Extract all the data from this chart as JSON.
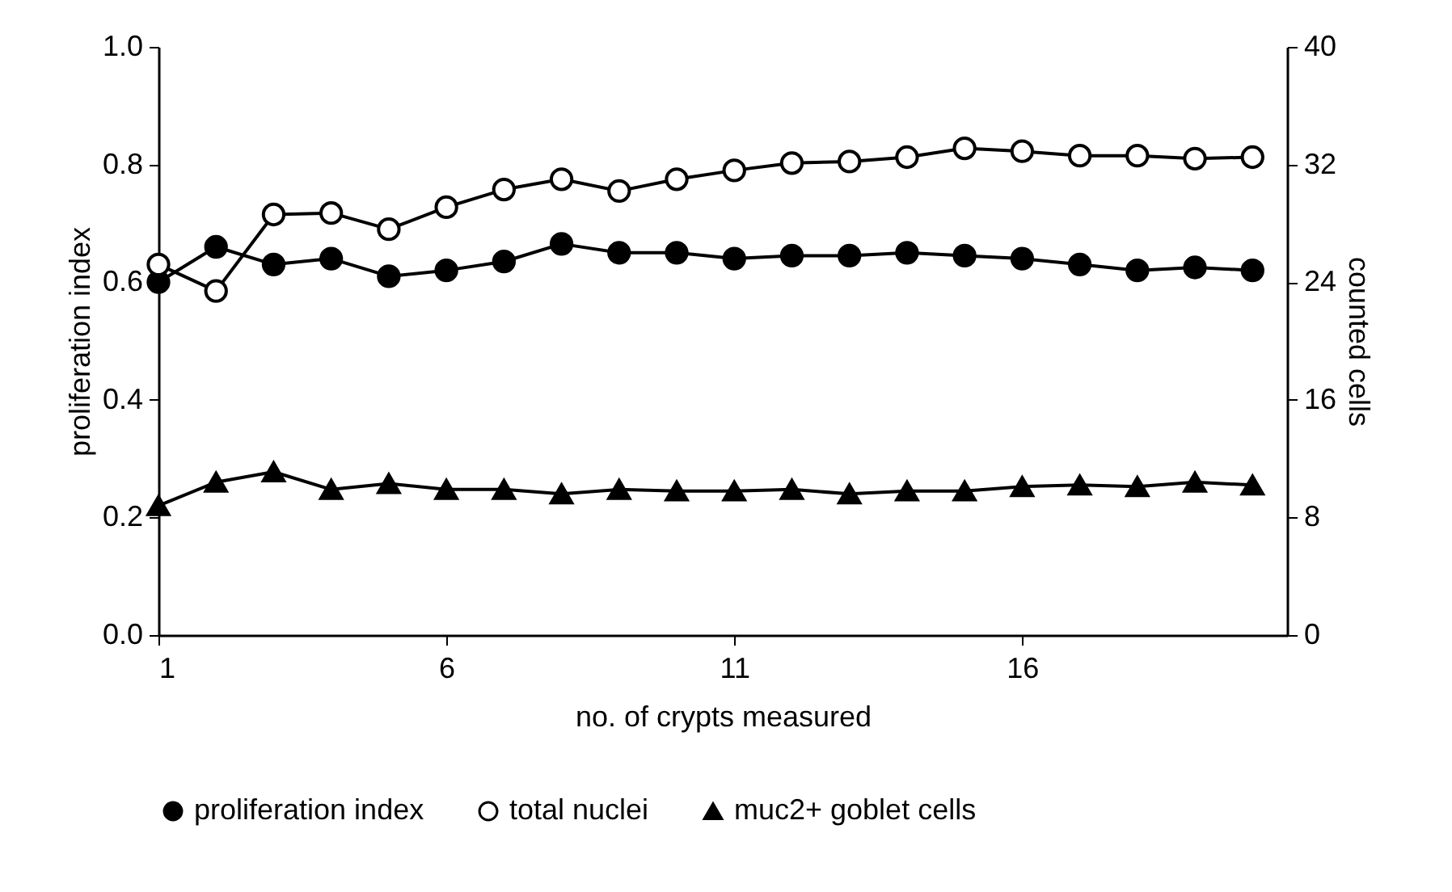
{
  "chart_data": {
    "type": "line",
    "xlabel": "no. of crypts measured",
    "ylabel": "proliferation index",
    "y2label": "counted cells",
    "x": [
      1,
      2,
      3,
      4,
      5,
      6,
      7,
      8,
      9,
      10,
      11,
      12,
      13,
      14,
      15,
      16,
      17,
      18,
      19,
      20
    ],
    "xlim": [
      1,
      20.6
    ],
    "xticks": [
      1,
      6,
      11,
      16
    ],
    "ylim": [
      0,
      1
    ],
    "yticks": [
      {
        "value": 0,
        "label": "0.0"
      },
      {
        "value": 0.2,
        "label": "0.2"
      },
      {
        "value": 0.4,
        "label": "0.4"
      },
      {
        "value": 0.6,
        "label": "0.6"
      },
      {
        "value": 0.8,
        "label": "0.8"
      },
      {
        "value": 1,
        "label": "1.0"
      }
    ],
    "y2lim": [
      0,
      40
    ],
    "y2ticks": [
      0,
      8,
      16,
      24,
      32,
      40
    ],
    "grid": false,
    "legend": "bottom",
    "series": [
      {
        "name": "proliferation index",
        "color": "#000000",
        "marker": "circle",
        "values": [
          0.6,
          0.66,
          0.63,
          0.64,
          0.61,
          0.62,
          0.635,
          0.665,
          0.65,
          0.65,
          0.64,
          0.645,
          0.645,
          0.65,
          0.645,
          0.64,
          0.63,
          0.62,
          0.625,
          0.62
        ]
      },
      {
        "name": "total nuclei",
        "color": "#000000",
        "marker": "circle",
        "axis": "y2",
        "values": [
          25.2,
          23.4,
          28.6,
          28.7,
          27.6,
          29.1,
          30.3,
          31.0,
          30.2,
          31.0,
          31.6,
          32.1,
          32.2,
          32.5,
          33.1,
          32.9,
          32.6,
          32.6,
          32.4,
          32.5
        ]
      },
      {
        "name": "muc2+ goblet cells",
        "color": "#000000",
        "marker": "triangle",
        "axis": "y2",
        "values": [
          8.8,
          10.4,
          11.1,
          9.9,
          10.3,
          9.9,
          9.9,
          9.6,
          9.9,
          9.8,
          9.8,
          9.9,
          9.6,
          9.8,
          9.8,
          10.1,
          10.2,
          10.1,
          10.4,
          10.2
        ]
      }
    ]
  }
}
